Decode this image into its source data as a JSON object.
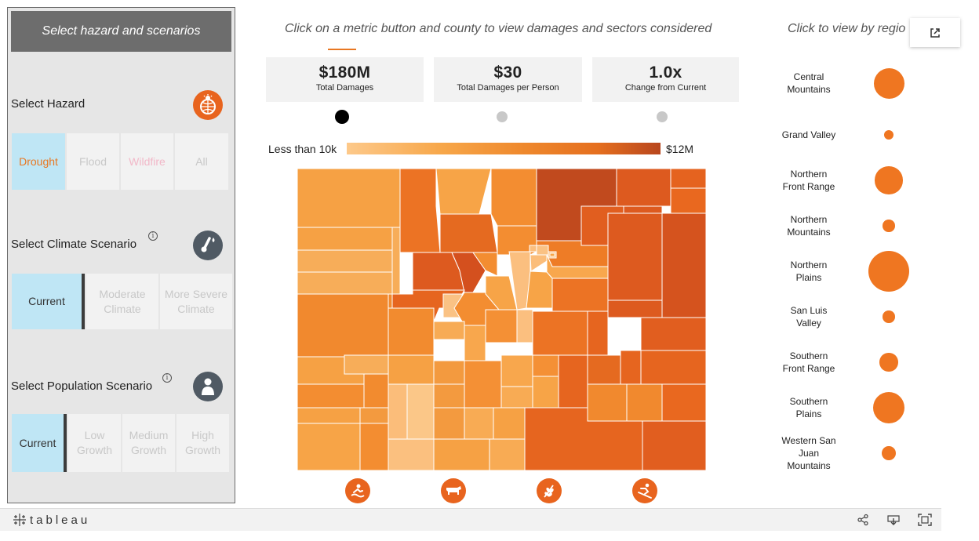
{
  "left_panel": {
    "header": "Select hazard and scenarios",
    "hazard": {
      "label": "Select Hazard",
      "icon": "sun-globe-icon",
      "options": [
        "Drought",
        "Flood",
        "Wildfire",
        "All"
      ],
      "selected": "Drought"
    },
    "climate": {
      "label": "Select Climate Scenario",
      "icon": "thermometer-drop-icon",
      "options": [
        "Current",
        "Moderate Climate",
        "More Severe Climate"
      ],
      "selected": "Current"
    },
    "population": {
      "label": "Select Population Scenario",
      "icon": "person-icon",
      "options": [
        "Current",
        "Low Growth",
        "Medium Growth",
        "High Growth"
      ],
      "selected": "Current"
    }
  },
  "instructions": {
    "main": "Click on a metric button and county to view damages and sectors considered",
    "region": "Click to view by regio"
  },
  "metrics": [
    {
      "value": "$180M",
      "label": "Total Damages",
      "active": true
    },
    {
      "value": "$30",
      "label": "Total Damages per Person",
      "active": false
    },
    {
      "value": "1.0x",
      "label": "Change from Current",
      "active": false
    }
  ],
  "legend": {
    "min": "Less than 10k",
    "max": "$12M",
    "colors": [
      "#fdc98a",
      "#b8461d"
    ]
  },
  "sectors": [
    "recreation-icon",
    "cattle-icon",
    "crops-icon",
    "skiing-icon"
  ],
  "regions": [
    {
      "name": "Central Mountains",
      "lines": [
        "Central",
        "Mountains"
      ],
      "size": 0.75
    },
    {
      "name": "Grand Valley",
      "lines": [
        "Grand Valley"
      ],
      "size": 0.22
    },
    {
      "name": "Northern Front Range",
      "lines": [
        "Northern",
        "Front Range"
      ],
      "size": 0.68
    },
    {
      "name": "Northern Mountains",
      "lines": [
        "Northern",
        "Mountains"
      ],
      "size": 0.3
    },
    {
      "name": "Northern Plains",
      "lines": [
        "Northern",
        "Plains"
      ],
      "size": 1.0
    },
    {
      "name": "San Luis Valley",
      "lines": [
        "San Luis",
        "Valley"
      ],
      "size": 0.3
    },
    {
      "name": "Southern Front Range",
      "lines": [
        "Southern",
        "Front Range"
      ],
      "size": 0.45
    },
    {
      "name": "Southern Plains",
      "lines": [
        "Southern",
        "Plains"
      ],
      "size": 0.77
    },
    {
      "name": "Western San Juan Mountains",
      "lines": [
        "Western San",
        "Juan",
        "Mountains"
      ],
      "size": 0.34
    }
  ],
  "bubble_color": "#ef7621",
  "toolbar": {
    "logo": "tableau",
    "tools": [
      "share-icon",
      "download-icon",
      "fullscreen-icon"
    ]
  }
}
